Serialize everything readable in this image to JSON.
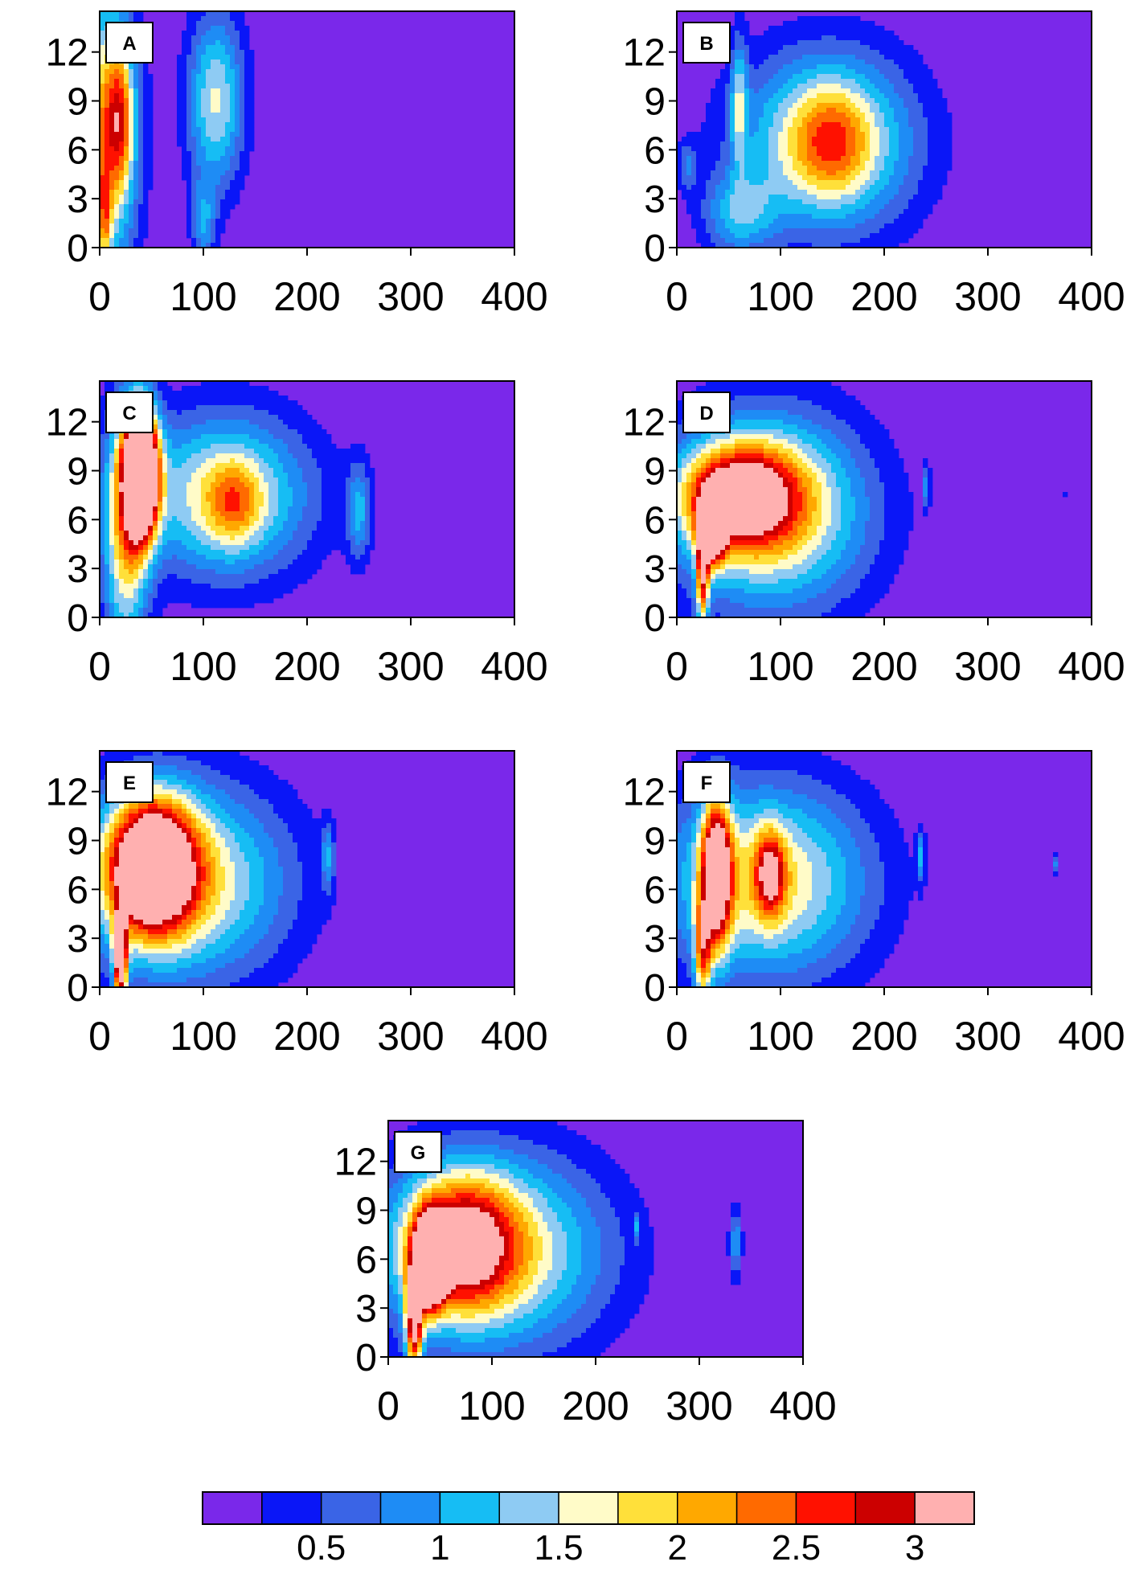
{
  "chart_data": {
    "type": "heatmap",
    "title": "",
    "xlabel": "",
    "ylabel": "",
    "colors": {
      "background": "#ffffff",
      "frame": "#000000",
      "levels": [
        "#7a28ea",
        "#0a16f7",
        "#3a64e6",
        "#1e8cf5",
        "#16bdf4",
        "#8ecbf3",
        "#fffbc8",
        "#ffe03a",
        "#ffa800",
        "#ff6a00",
        "#ff1100",
        "#cc0000",
        "#ffb0b0"
      ]
    },
    "colorbar": {
      "bins": 13,
      "tick_labels": [
        "0.5",
        "1",
        "1.5",
        "2",
        "2.5",
        "3"
      ]
    },
    "x_axis": {
      "range": [
        0,
        400
      ],
      "ticks": [
        0,
        100,
        200,
        300,
        400
      ],
      "tick_labels": [
        "0",
        "100",
        "200",
        "300",
        "400"
      ]
    },
    "y_axis": {
      "range": [
        0,
        14.5
      ],
      "ticks": [
        0,
        3,
        6,
        9,
        12
      ],
      "tick_labels": [
        "0",
        "3",
        "6",
        "9",
        "12"
      ]
    },
    "panels": [
      {
        "label": "A",
        "blobs": [
          {
            "x": 6,
            "y": 7,
            "rx": 30,
            "ry": 8.5,
            "v": 1.0
          },
          {
            "x": 20,
            "y": 8,
            "rx": 12,
            "ry": 4,
            "v": 0.55
          },
          {
            "x": 5,
            "y": 2,
            "rx": 6,
            "ry": 3,
            "v": 0.5
          },
          {
            "x": 112,
            "y": 9,
            "rx": 28,
            "ry": 5.5,
            "v": 0.7
          },
          {
            "x": 100,
            "y": 1.5,
            "rx": 12,
            "ry": 2.5,
            "v": 0.4
          }
        ]
      },
      {
        "label": "B",
        "blobs": [
          {
            "x": 145,
            "y": 6.5,
            "rx": 85,
            "ry": 5.5,
            "v": 0.85
          },
          {
            "x": 150,
            "y": 6.5,
            "rx": 35,
            "ry": 3.2,
            "v": 0.4
          },
          {
            "x": 60,
            "y": 9,
            "rx": 8,
            "ry": 4,
            "v": 0.5
          },
          {
            "x": 60,
            "y": 2,
            "rx": 35,
            "ry": 2.5,
            "v": 0.45
          },
          {
            "x": 10,
            "y": 5,
            "rx": 10,
            "ry": 1.5,
            "v": 0.3
          }
        ]
      },
      {
        "label": "C",
        "blobs": [
          {
            "x": 40,
            "y": 9,
            "rx": 16,
            "ry": 3.8,
            "v": 2.2
          },
          {
            "x": 25,
            "y": 5,
            "rx": 22,
            "ry": 8,
            "v": 0.8
          },
          {
            "x": 120,
            "y": 7.5,
            "rx": 85,
            "ry": 5,
            "v": 0.8
          },
          {
            "x": 130,
            "y": 7,
            "rx": 25,
            "ry": 2.5,
            "v": 0.4
          },
          {
            "x": 250,
            "y": 6.5,
            "rx": 12,
            "ry": 3,
            "v": 0.45
          }
        ]
      },
      {
        "label": "D",
        "blobs": [
          {
            "x": 35,
            "y": 5.5,
            "rx": 12,
            "ry": 2,
            "v": 1.5
          },
          {
            "x": 25,
            "y": 2.5,
            "rx": 6,
            "ry": 3,
            "v": 1.0
          },
          {
            "x": 60,
            "y": 7.5,
            "rx": 55,
            "ry": 3,
            "v": 1.1
          },
          {
            "x": 90,
            "y": 6.5,
            "rx": 95,
            "ry": 6,
            "v": 0.9
          },
          {
            "x": 241,
            "y": 8,
            "rx": 3,
            "ry": 1.2,
            "v": 0.45
          },
          {
            "x": 376,
            "y": 7.5,
            "rx": 1.5,
            "ry": 0.6,
            "v": 0.4
          }
        ]
      },
      {
        "label": "E",
        "blobs": [
          {
            "x": 50,
            "y": 7.5,
            "rx": 40,
            "ry": 4,
            "v": 1.6
          },
          {
            "x": 40,
            "y": 6,
            "rx": 6,
            "ry": 1.2,
            "v": 1.0
          },
          {
            "x": 20,
            "y": 1.8,
            "rx": 6,
            "ry": 2.8,
            "v": 1.6
          },
          {
            "x": 80,
            "y": 6.5,
            "rx": 100,
            "ry": 6,
            "v": 0.85
          },
          {
            "x": 220,
            "y": 8,
            "rx": 6,
            "ry": 2,
            "v": 0.4
          }
        ]
      },
      {
        "label": "F",
        "blobs": [
          {
            "x": 38,
            "y": 7,
            "rx": 14,
            "ry": 4.5,
            "v": 1.4
          },
          {
            "x": 90,
            "y": 7,
            "rx": 14,
            "ry": 2.5,
            "v": 0.8
          },
          {
            "x": 25,
            "y": 2,
            "rx": 8,
            "ry": 3,
            "v": 0.8
          },
          {
            "x": 85,
            "y": 6.5,
            "rx": 100,
            "ry": 6,
            "v": 0.85
          },
          {
            "x": 235,
            "y": 8,
            "rx": 4,
            "ry": 1.5,
            "v": 0.45
          },
          {
            "x": 365,
            "y": 7.5,
            "rx": 1.5,
            "ry": 0.6,
            "v": 0.4
          }
        ]
      },
      {
        "label": "G",
        "blobs": [
          {
            "x": 40,
            "y": 5.8,
            "rx": 14,
            "ry": 2.5,
            "v": 2.0
          },
          {
            "x": 42,
            "y": 5.5,
            "rx": 4,
            "ry": 0.8,
            "v": 1.0
          },
          {
            "x": 25,
            "y": 2,
            "rx": 8,
            "ry": 3,
            "v": 1.2
          },
          {
            "x": 70,
            "y": 7,
            "rx": 50,
            "ry": 4,
            "v": 1.0
          },
          {
            "x": 100,
            "y": 6.5,
            "rx": 110,
            "ry": 6,
            "v": 0.85
          },
          {
            "x": 335,
            "y": 7,
            "rx": 6,
            "ry": 2.2,
            "v": 0.45
          },
          {
            "x": 240,
            "y": 8,
            "rx": 2,
            "ry": 0.8,
            "v": 0.4
          }
        ]
      }
    ]
  }
}
